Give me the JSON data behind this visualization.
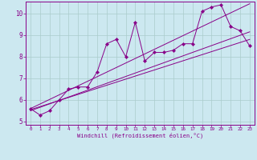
{
  "title": "",
  "xlabel": "Windchill (Refroidissement éolien,°C)",
  "ylabel": "",
  "bg_color": "#cce8f0",
  "line_color": "#880088",
  "grid_color": "#aacccc",
  "xlim": [
    -0.5,
    23.5
  ],
  "ylim": [
    4.85,
    10.55
  ],
  "xticks": [
    0,
    1,
    2,
    3,
    4,
    5,
    6,
    7,
    8,
    9,
    10,
    11,
    12,
    13,
    14,
    15,
    16,
    17,
    18,
    19,
    20,
    21,
    22,
    23
  ],
  "yticks": [
    5,
    6,
    7,
    8,
    9,
    10
  ],
  "series": [
    {
      "x": [
        0,
        1,
        2,
        3,
        4,
        5,
        6,
        7,
        8,
        9,
        10,
        11,
        12,
        13,
        14,
        15,
        16,
        17,
        18,
        19,
        20,
        21,
        22,
        23
      ],
      "y": [
        5.6,
        5.3,
        5.5,
        6.0,
        6.5,
        6.6,
        6.6,
        7.3,
        8.6,
        8.8,
        8.0,
        9.6,
        7.8,
        8.2,
        8.2,
        8.3,
        8.6,
        8.6,
        10.1,
        10.3,
        10.4,
        9.4,
        9.2,
        8.5
      ],
      "marker": "D",
      "markersize": 2.2
    },
    {
      "x": [
        0,
        23
      ],
      "y": [
        5.55,
        8.8
      ],
      "marker": null
    },
    {
      "x": [
        0,
        23
      ],
      "y": [
        5.6,
        10.45
      ],
      "marker": null
    },
    {
      "x": [
        0,
        23
      ],
      "y": [
        5.5,
        9.15
      ],
      "marker": null
    }
  ]
}
